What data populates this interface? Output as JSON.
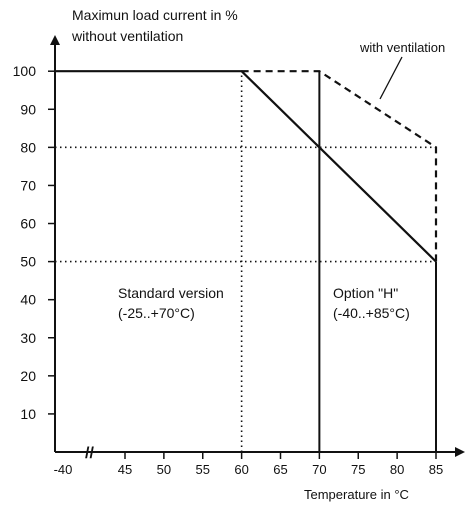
{
  "chart_data": {
    "type": "line",
    "ylabel_lines": [
      "Maximun load current in %",
      "without ventilation"
    ],
    "xlabel": "Temperature in °C",
    "xlim": [
      40,
      86
    ],
    "ylim": [
      0,
      105
    ],
    "x_ticks": [
      "-40",
      "45",
      "50",
      "55",
      "60",
      "65",
      "70",
      "75",
      "80",
      "85"
    ],
    "y_ticks": [
      "100",
      "90",
      "80",
      "70",
      "60",
      "50",
      "40",
      "30",
      "20",
      "10"
    ],
    "series": [
      {
        "name": "without ventilation",
        "line_style": "solid",
        "points": [
          [
            40,
            100
          ],
          [
            60,
            100
          ],
          [
            85,
            50
          ]
        ]
      },
      {
        "name": "with ventilation",
        "line_style": "dashed",
        "points": [
          [
            60,
            100
          ],
          [
            70,
            100
          ],
          [
            85,
            80
          ],
          [
            85,
            50
          ]
        ]
      }
    ],
    "vertical_lines": [
      {
        "x": 60,
        "y_to": 100,
        "style": "dotted"
      },
      {
        "x": 70,
        "y_to": 100,
        "style": "solid"
      },
      {
        "x": 85,
        "y_to": 50,
        "style": "solid"
      }
    ],
    "horizontal_lines": [
      {
        "y": 80,
        "x_to": 85,
        "style": "dotted"
      },
      {
        "y": 50,
        "x_to": 85,
        "style": "dotted"
      }
    ],
    "region_labels": [
      {
        "lines": [
          "Standard version",
          "(-25..+70°C)"
        ]
      },
      {
        "lines": [
          "Option \"H\"",
          "(-40..+85°C)"
        ]
      }
    ],
    "annotation": "with ventilation",
    "axis_break": "//"
  }
}
